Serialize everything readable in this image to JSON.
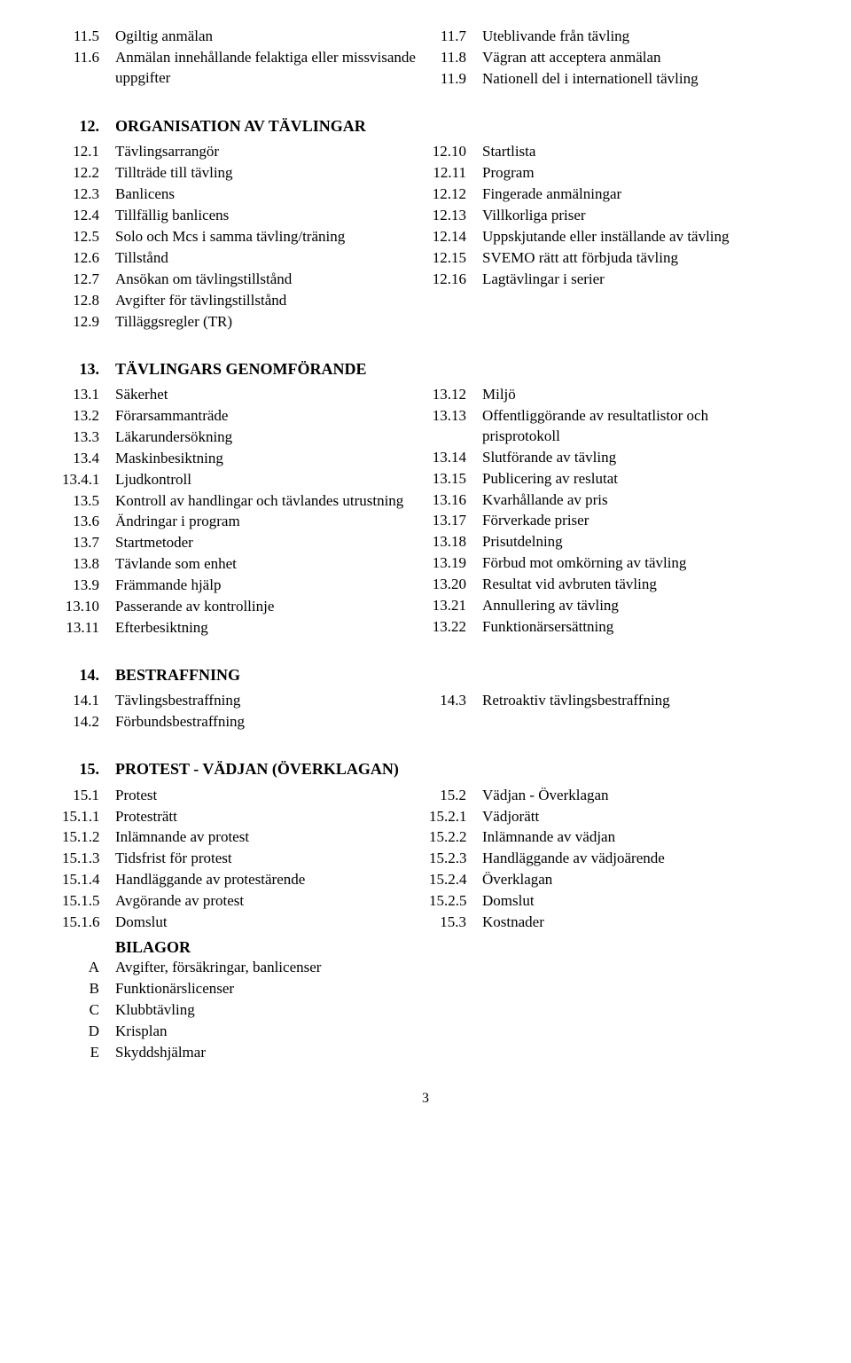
{
  "sections": {
    "intro": {
      "left": [
        {
          "num": "11.5",
          "text": "Ogiltig anmälan"
        },
        {
          "num": "11.6",
          "text": "Anmälan innehållande felaktiga eller missvisande uppgifter"
        }
      ],
      "right": [
        {
          "num": "11.7",
          "text": "Uteblivande från tävling"
        },
        {
          "num": "11.8",
          "text": "Vägran att acceptera anmälan"
        },
        {
          "num": "11.9",
          "text": "Nationell del i internationell tävling"
        }
      ]
    },
    "s12": {
      "num": "12.",
      "title": "ORGANISATION AV TÄVLINGAR",
      "left": [
        {
          "num": "12.1",
          "text": "Tävlingsarrangör"
        },
        {
          "num": "12.2",
          "text": "Tillträde till tävling"
        },
        {
          "num": "12.3",
          "text": "Banlicens"
        },
        {
          "num": "12.4",
          "text": "Tillfällig banlicens"
        },
        {
          "num": "12.5",
          "text": "Solo och Mcs i samma tävling/träning"
        },
        {
          "num": "12.6",
          "text": "Tillstånd"
        },
        {
          "num": "12.7",
          "text": "Ansökan om tävlingstillstånd"
        },
        {
          "num": "12.8",
          "text": "Avgifter för tävlingstillstånd"
        },
        {
          "num": "12.9",
          "text": "Tilläggsregler (TR)"
        }
      ],
      "right": [
        {
          "num": "12.10",
          "text": "Startlista"
        },
        {
          "num": "12.11",
          "text": "Program"
        },
        {
          "num": "12.12",
          "text": "Fingerade anmälningar"
        },
        {
          "num": "12.13",
          "text": "Villkorliga priser"
        },
        {
          "num": "12.14",
          "text": "Uppskjutande eller inställande av tävling"
        },
        {
          "num": "12.15",
          "text": "SVEMO rätt att förbjuda tävling"
        },
        {
          "num": "12.16",
          "text": "Lagtävlingar i serier"
        }
      ]
    },
    "s13": {
      "num": "13.",
      "title": "TÄVLINGARS GENOMFÖRANDE",
      "left": [
        {
          "num": "13.1",
          "text": "Säkerhet"
        },
        {
          "num": "13.2",
          "text": "Förarsammanträde"
        },
        {
          "num": "13.3",
          "text": "Läkarundersökning"
        },
        {
          "num": "13.4",
          "text": "Maskinbesiktning"
        },
        {
          "num": "13.4.1",
          "text": "Ljudkontroll"
        },
        {
          "num": "13.5",
          "text": "Kontroll av handlingar och tävlandes utrustning"
        },
        {
          "num": "13.6",
          "text": "Ändringar i program"
        },
        {
          "num": "13.7",
          "text": "Startmetoder"
        },
        {
          "num": "13.8",
          "text": "Tävlande som enhet"
        },
        {
          "num": "13.9",
          "text": "Främmande hjälp"
        },
        {
          "num": "13.10",
          "text": "Passerande av kontrollinje"
        },
        {
          "num": "13.11",
          "text": "Efterbesiktning"
        }
      ],
      "right": [
        {
          "num": "13.12",
          "text": "Miljö"
        },
        {
          "num": "13.13",
          "text": "Offentliggörande av resultatlistor och prisprotokoll"
        },
        {
          "num": "13.14",
          "text": "Slutförande av tävling"
        },
        {
          "num": "13.15",
          "text": "Publicering av reslutat"
        },
        {
          "num": "13.16",
          "text": "Kvarhållande av pris"
        },
        {
          "num": "13.17",
          "text": "Förverkade priser"
        },
        {
          "num": "13.18",
          "text": "Prisutdelning"
        },
        {
          "num": "13.19",
          "text": "Förbud mot omkörning av tävling"
        },
        {
          "num": "13.20",
          "text": "Resultat vid avbruten tävling"
        },
        {
          "num": "13.21",
          "text": "Annullering av tävling"
        },
        {
          "num": "13.22",
          "text": "Funktionärsersättning"
        }
      ]
    },
    "s14": {
      "num": "14.",
      "title": "BESTRAFFNING",
      "left": [
        {
          "num": "14.1",
          "text": "Tävlingsbestraffning"
        },
        {
          "num": "14.2",
          "text": "Förbundsbestraffning"
        }
      ],
      "right": [
        {
          "num": "14.3",
          "text": "Retroaktiv tävlingsbestraffning"
        }
      ]
    },
    "s15": {
      "num": "15.",
      "title": "PROTEST - VÄDJAN (ÖVERKLAGAN)",
      "left": [
        {
          "num": "15.1",
          "text": "Protest"
        },
        {
          "num": "15.1.1",
          "text": "Protesträtt"
        },
        {
          "num": "15.1.2",
          "text": "Inlämnande av protest"
        },
        {
          "num": "15.1.3",
          "text": "Tidsfrist för protest"
        },
        {
          "num": "15.1.4",
          "text": "Handläggande av protestärende"
        },
        {
          "num": "15.1.5",
          "text": "Avgörande av protest"
        },
        {
          "num": "15.1.6",
          "text": "Domslut"
        }
      ],
      "right": [
        {
          "num": "15.2",
          "text": "Vädjan - Överklagan"
        },
        {
          "num": "15.2.1",
          "text": "Vädjorätt"
        },
        {
          "num": "15.2.2",
          "text": "Inlämnande av vädjan"
        },
        {
          "num": "15.2.3",
          "text": "Handläggande av vädjoärende"
        },
        {
          "num": "15.2.4",
          "text": "Överklagan"
        },
        {
          "num": "15.2.5",
          "text": "Domslut"
        },
        {
          "num": "15.3",
          "text": "Kostnader"
        }
      ]
    },
    "appendix": {
      "title": "BILAGOR",
      "items": [
        {
          "num": "A",
          "text": "Avgifter, försäkringar, banlicenser"
        },
        {
          "num": "B",
          "text": "Funktionärslicenser"
        },
        {
          "num": "C",
          "text": "Klubbtävling"
        },
        {
          "num": "D",
          "text": "Krisplan"
        },
        {
          "num": "E",
          "text": "Skyddshjälmar"
        }
      ]
    }
  },
  "page_number": "3"
}
